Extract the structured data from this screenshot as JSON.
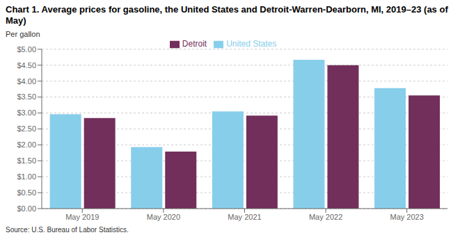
{
  "chart_data": {
    "type": "bar",
    "title": "Chart 1. Average prices for gasoline, the United States and Detroit-Warren-Dearborn, MI, 2019–23 (as of May)",
    "y_label": "Per gallon",
    "annotations": [
      "Source: U.S. Bureau of Labor Statistics."
    ],
    "categories": [
      "May 2019",
      "May 2020",
      "May 2021",
      "May 2022",
      "May 2023"
    ],
    "series": [
      {
        "name": "United States",
        "color": "#87CEEB",
        "values": [
          2.96,
          1.93,
          3.05,
          4.67,
          3.78
        ]
      },
      {
        "name": "Detroit",
        "color": "#722F5B",
        "values": [
          2.84,
          1.79,
          2.92,
          4.5,
          3.55
        ]
      }
    ],
    "ylim": [
      0,
      5.0
    ],
    "yticks": [
      {
        "value": 0.0,
        "label": "$0.00"
      },
      {
        "value": 0.5,
        "label": "$0.50"
      },
      {
        "value": 1.0,
        "label": "$1.00"
      },
      {
        "value": 1.5,
        "label": "$1.50"
      },
      {
        "value": 2.0,
        "label": "$2.00"
      },
      {
        "value": 2.5,
        "label": "$2.50"
      },
      {
        "value": 3.0,
        "label": "$3.00"
      },
      {
        "value": 3.5,
        "label": "$3.50"
      },
      {
        "value": 4.0,
        "label": "$4.00"
      },
      {
        "value": 4.5,
        "label": "$4.50"
      },
      {
        "value": 5.0,
        "label": "$5.00"
      }
    ],
    "grid": true,
    "legend": "top"
  }
}
